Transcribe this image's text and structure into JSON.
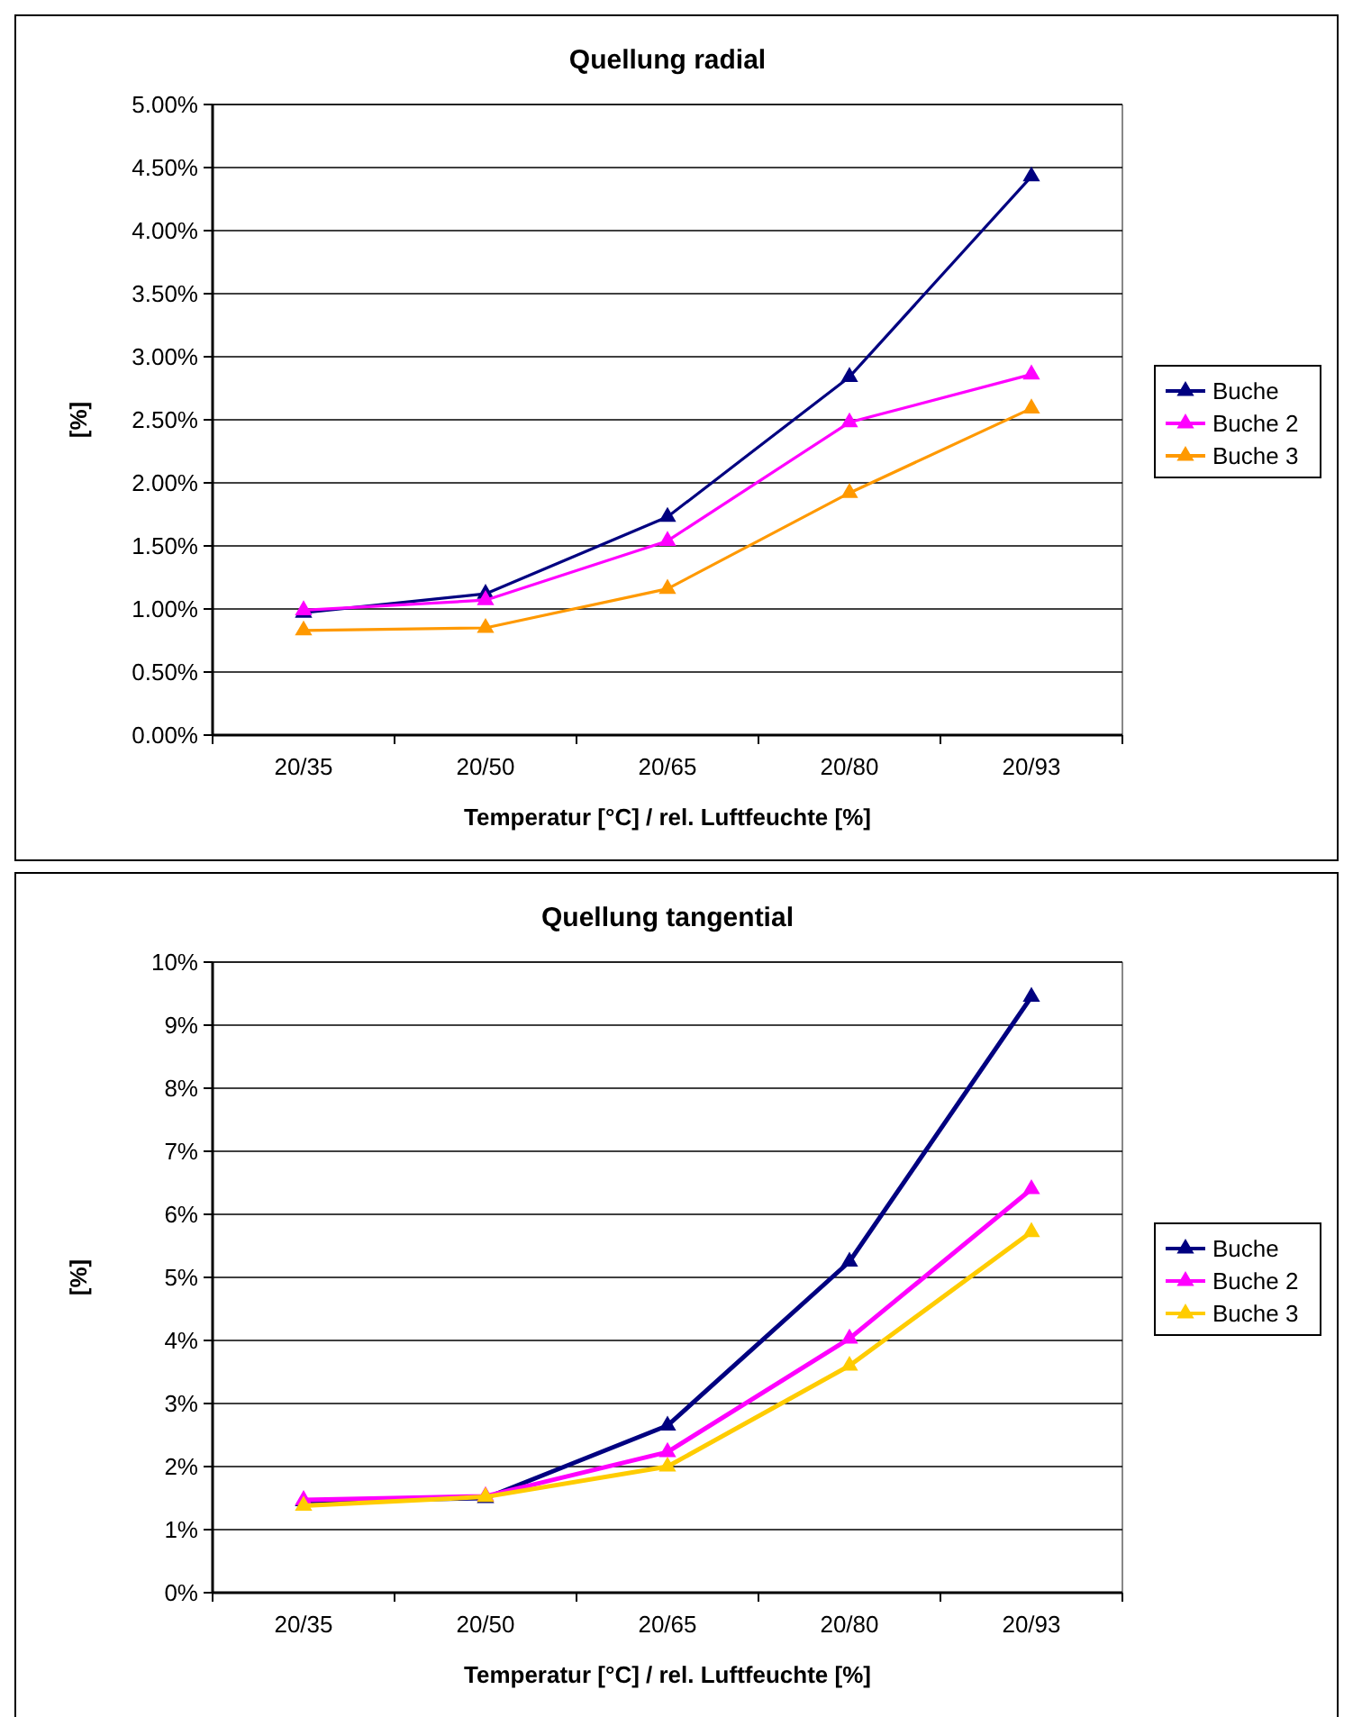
{
  "chart_data": [
    {
      "type": "line",
      "title": "Quellung radial",
      "xlabel": "Temperatur [°C] / rel. Luftfeuchte [%]",
      "ylabel": "[%]",
      "categories": [
        "20/35",
        "20/50",
        "20/65",
        "20/80",
        "20/93"
      ],
      "series": [
        {
          "name": "Buche",
          "color": "#000080",
          "values": [
            0.97,
            1.12,
            1.73,
            2.84,
            4.43
          ]
        },
        {
          "name": "Buche 2",
          "color": "#ff00ff",
          "values": [
            0.99,
            1.07,
            1.54,
            2.48,
            2.86
          ]
        },
        {
          "name": "Buche 3",
          "color": "#ff9900",
          "values": [
            0.83,
            0.85,
            1.16,
            1.92,
            2.59
          ]
        }
      ],
      "ylim": [
        0,
        5
      ],
      "yticks": [
        {
          "value": 0,
          "label": "0.00%"
        },
        {
          "value": 0.5,
          "label": "0.50%"
        },
        {
          "value": 1,
          "label": "1.00%"
        },
        {
          "value": 1.5,
          "label": "1.50%"
        },
        {
          "value": 2,
          "label": "2.00%"
        },
        {
          "value": 2.5,
          "label": "2.50%"
        },
        {
          "value": 3,
          "label": "3.00%"
        },
        {
          "value": 3.5,
          "label": "3.50%"
        },
        {
          "value": 4,
          "label": "4.00%"
        },
        {
          "value": 4.5,
          "label": "4.50%"
        },
        {
          "value": 5,
          "label": "5.00%"
        }
      ],
      "grid": "y",
      "legend": "right",
      "marker": "triangle",
      "line_style": "solid"
    },
    {
      "type": "line",
      "title": "Quellung tangential",
      "xlabel": "Temperatur [°C] / rel. Luftfeuchte [%]",
      "ylabel": "[%]",
      "categories": [
        "20/35",
        "20/50",
        "20/65",
        "20/80",
        "20/93"
      ],
      "series": [
        {
          "name": "Buche",
          "color": "#000080",
          "values": [
            1.45,
            1.5,
            2.65,
            5.25,
            9.45
          ]
        },
        {
          "name": "Buche 2",
          "color": "#ff00ff",
          "values": [
            1.47,
            1.53,
            2.23,
            4.03,
            6.4
          ]
        },
        {
          "name": "Buche 3",
          "color": "#ffcc00",
          "values": [
            1.38,
            1.52,
            2.0,
            3.6,
            5.72
          ]
        }
      ],
      "ylim": [
        0,
        10
      ],
      "yticks": [
        {
          "value": 0,
          "label": "0%"
        },
        {
          "value": 1,
          "label": "1%"
        },
        {
          "value": 2,
          "label": "2%"
        },
        {
          "value": 3,
          "label": "3%"
        },
        {
          "value": 4,
          "label": "4%"
        },
        {
          "value": 5,
          "label": "5%"
        },
        {
          "value": 6,
          "label": "6%"
        },
        {
          "value": 7,
          "label": "7%"
        },
        {
          "value": 8,
          "label": "8%"
        },
        {
          "value": 9,
          "label": "9%"
        },
        {
          "value": 10,
          "label": "10%"
        }
      ],
      "grid": "y",
      "legend": "right",
      "marker": "triangle",
      "line_style": "solid"
    }
  ]
}
